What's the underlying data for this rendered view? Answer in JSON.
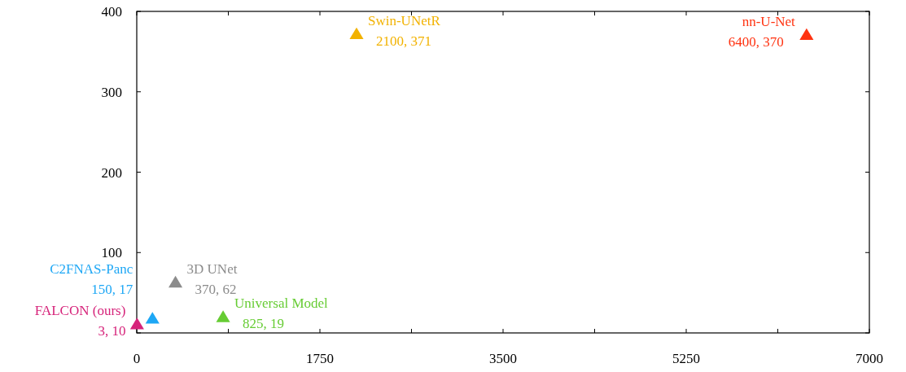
{
  "chart_data": {
    "type": "scatter",
    "marker": "triangle",
    "grid": false,
    "xlim": [
      0,
      7000
    ],
    "ylim": [
      0,
      400
    ],
    "xticks": [
      0,
      {
        "value": 875,
        "label": null
      },
      1750,
      {
        "value": 2625,
        "label": null
      },
      3500,
      {
        "value": 4375,
        "label": null
      },
      5250,
      {
        "value": 6125,
        "label": null
      },
      7000
    ],
    "yticks": [
      {
        "value": 0,
        "label": null
      },
      100,
      200,
      300,
      400
    ],
    "series": [
      {
        "name": "FALCON (ours)",
        "color": "#d6237a",
        "x": [
          3
        ],
        "values": [
          10
        ],
        "value_labels": [
          "3, 10"
        ]
      },
      {
        "name": "C2FNAS-Panc",
        "color": "#1ea7f5",
        "x": [
          150
        ],
        "values": [
          17
        ],
        "value_labels": [
          "150, 17"
        ]
      },
      {
        "name": "3D UNet",
        "color": "#8c8c8c",
        "x": [
          370
        ],
        "values": [
          62
        ],
        "value_labels": [
          "370, 62"
        ]
      },
      {
        "name": "Universal Model",
        "color": "#66cc33",
        "x": [
          825
        ],
        "values": [
          19
        ],
        "value_labels": [
          "825, 19"
        ]
      },
      {
        "name": "Swin-UNetR",
        "color": "#f2b200",
        "x": [
          2100
        ],
        "values": [
          371
        ],
        "value_labels": [
          "2100, 371"
        ]
      },
      {
        "name": "nn-U-Net",
        "color": "#ff3311",
        "x": [
          6400
        ],
        "values": [
          370
        ],
        "value_labels": [
          "6400, 370"
        ]
      }
    ]
  }
}
